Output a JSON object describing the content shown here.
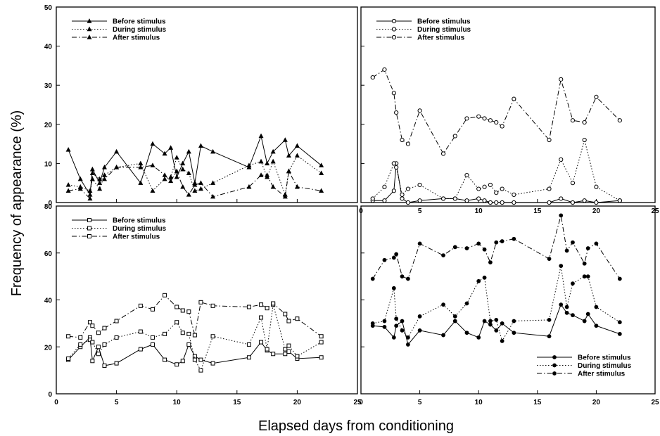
{
  "figure": {
    "ylabel": "Frequency of appearance (%)",
    "xlabel": "Elapsed days from conditioning"
  },
  "chart_data": [
    {
      "type": "line",
      "marker": "filled-triangle",
      "xlim": [
        0,
        25
      ],
      "ylim": [
        0,
        50
      ],
      "xticks": [
        "0",
        "5",
        "10",
        "15",
        "20",
        "25"
      ],
      "yticks": [
        "0",
        "10",
        "20",
        "30",
        "40",
        "50"
      ],
      "legend_position": "top-left",
      "series": [
        {
          "name": "Before stimulus",
          "style": "solid",
          "x": [
            1,
            2,
            2.8,
            3,
            3.6,
            4,
            5,
            7,
            8,
            9,
            9.5,
            10,
            10.5,
            11,
            11.5,
            12,
            13,
            16,
            17,
            17.5,
            18,
            19,
            19.3,
            20,
            22
          ],
          "y": [
            13.5,
            6,
            2,
            8.5,
            5,
            9,
            13,
            5,
            15,
            12.5,
            14,
            6.5,
            10,
            13,
            5,
            14.5,
            13,
            9,
            17,
            10,
            13,
            16,
            12,
            14.5,
            9.5
          ]
        },
        {
          "name": "During stimulus",
          "style": "dotted",
          "x": [
            1,
            2,
            2.8,
            3,
            3.6,
            4,
            5,
            7,
            8,
            9,
            9.5,
            10,
            10.5,
            11,
            11.5,
            12,
            13,
            16,
            17,
            17.5,
            18,
            19,
            19.3,
            20,
            22
          ],
          "y": [
            4.5,
            4,
            3,
            6,
            3.5,
            7,
            9,
            10,
            3,
            6,
            6.5,
            11.5,
            8.5,
            7.5,
            3,
            3.5,
            5,
            9.5,
            10.5,
            6.5,
            10.5,
            2,
            8,
            12,
            7.5
          ]
        },
        {
          "name": "After stimulus",
          "style": "dashdot",
          "x": [
            1,
            2,
            2.8,
            3,
            3.6,
            4,
            5,
            7,
            8,
            9,
            9.5,
            10,
            10.5,
            11,
            11.5,
            12,
            13,
            16,
            17,
            17.5,
            18,
            19,
            19.3,
            20,
            22
          ],
          "y": [
            3,
            3.5,
            1,
            7.5,
            6,
            6,
            9,
            9,
            9.5,
            7,
            5.5,
            8,
            4,
            2,
            4.5,
            5,
            1.5,
            4,
            7,
            7,
            4,
            1.5,
            8,
            4,
            3
          ]
        }
      ]
    },
    {
      "type": "line",
      "marker": "open-circle",
      "xlim": [
        0,
        25
      ],
      "ylim": [
        0,
        50
      ],
      "xticks": [
        "0",
        "5",
        "10",
        "15",
        "20",
        "25"
      ],
      "yticks": [
        "0",
        "10",
        "20",
        "30",
        "40",
        "50"
      ],
      "legend_position": "top-left",
      "series": [
        {
          "name": "Before stimulus",
          "style": "solid",
          "x": [
            1,
            2,
            2.8,
            3,
            3.5,
            4,
            5,
            7,
            8,
            9,
            10,
            10.5,
            11,
            11.5,
            12,
            13,
            16,
            17,
            18,
            19,
            20,
            22
          ],
          "y": [
            0.5,
            0.5,
            3,
            10,
            1,
            0,
            0.5,
            1,
            1,
            0.5,
            1,
            0.5,
            0,
            0,
            0,
            0,
            0,
            1,
            0,
            0.5,
            0,
            0.5
          ]
        },
        {
          "name": "During stimulus",
          "style": "dotted",
          "x": [
            1,
            2,
            2.8,
            3,
            3.5,
            4,
            5,
            7,
            8,
            9,
            10,
            10.5,
            11,
            11.5,
            12,
            13,
            16,
            17,
            18,
            19,
            20,
            22
          ],
          "y": [
            1,
            4,
            10,
            9,
            2,
            3.5,
            4.5,
            1,
            1,
            7,
            3.5,
            4,
            4.5,
            2.5,
            3.5,
            2,
            3.5,
            11,
            5,
            16,
            4,
            0.5
          ]
        },
        {
          "name": "After stimulus",
          "style": "dashdot",
          "x": [
            1,
            2,
            2.8,
            3,
            3.5,
            4,
            5,
            7,
            8,
            9,
            10,
            10.5,
            11,
            11.5,
            12,
            13,
            16,
            17,
            18,
            19,
            20,
            22
          ],
          "y": [
            32,
            34,
            28,
            23,
            16,
            15,
            23.5,
            12.5,
            17,
            21.5,
            22,
            21.5,
            21,
            20.5,
            19.5,
            26.5,
            16,
            31.5,
            21,
            20.5,
            27,
            21
          ]
        }
      ]
    },
    {
      "type": "line",
      "marker": "open-square",
      "xlim": [
        0,
        25
      ],
      "ylim": [
        0,
        80
      ],
      "xticks": [
        "0",
        "5",
        "10",
        "15",
        "20",
        "25"
      ],
      "yticks": [
        "0",
        "20",
        "40",
        "60",
        "80"
      ],
      "legend_position": "top-left",
      "series": [
        {
          "name": "Before stimulus",
          "style": "solid",
          "x": [
            1,
            2,
            2.8,
            3,
            3.5,
            4,
            5,
            7,
            8,
            9,
            10,
            10.5,
            11,
            11.5,
            12,
            13,
            16,
            17,
            17.5,
            18,
            19,
            19.3,
            20,
            22
          ],
          "y": [
            14.5,
            20,
            24,
            14,
            20,
            12,
            13,
            19,
            21,
            14.5,
            12.5,
            14,
            21,
            16,
            14.5,
            13,
            15.5,
            22,
            18.5,
            17,
            17,
            18,
            15,
            15.5
          ]
        },
        {
          "name": "During stimulus",
          "style": "dotted",
          "x": [
            1,
            2,
            2.8,
            3,
            3.5,
            4,
            5,
            7,
            8,
            9,
            10,
            10.5,
            11,
            11.5,
            12,
            13,
            16,
            17,
            17.5,
            18,
            19,
            19.3,
            20,
            22
          ],
          "y": [
            15,
            21,
            23,
            22,
            17,
            21,
            24,
            26.5,
            24,
            25.5,
            30.5,
            26,
            25.5,
            14.5,
            10,
            24.5,
            21,
            32.5,
            19,
            38,
            19,
            20.5,
            16,
            22
          ]
        },
        {
          "name": "After stimulus",
          "style": "dashdot",
          "x": [
            1,
            2,
            2.8,
            3,
            3.5,
            4,
            5,
            7,
            8,
            9,
            10,
            10.5,
            11,
            11.5,
            12,
            13,
            16,
            17,
            17.5,
            18,
            19,
            19.3,
            20,
            22
          ],
          "y": [
            24.5,
            24,
            30.5,
            29,
            26,
            28,
            31,
            37.5,
            36,
            42,
            37,
            35.5,
            35,
            25,
            39,
            37.5,
            37,
            38,
            36.5,
            38.5,
            34,
            31,
            32,
            24.5
          ]
        }
      ]
    },
    {
      "type": "line",
      "marker": "filled-circle",
      "xlim": [
        0,
        25
      ],
      "ylim": [
        0,
        80
      ],
      "xticks": [
        "0",
        "5",
        "10",
        "15",
        "20",
        "25"
      ],
      "yticks": [
        "0",
        "20",
        "40",
        "60",
        "80"
      ],
      "legend_position": "bottom-right",
      "series": [
        {
          "name": "Before stimulus",
          "style": "solid",
          "x": [
            1,
            2,
            2.8,
            3,
            3.5,
            4,
            5,
            7,
            8,
            9,
            10,
            10.5,
            11,
            11.5,
            12,
            13,
            16,
            17,
            17.5,
            18,
            19,
            19.3,
            20,
            22
          ],
          "y": [
            29,
            28.5,
            24,
            29,
            31,
            21,
            27,
            25,
            31,
            26,
            24,
            31,
            29.5,
            27,
            30,
            26,
            24.5,
            38,
            34.5,
            33.5,
            31,
            34,
            29,
            25.5
          ]
        },
        {
          "name": "During stimulus",
          "style": "dotted",
          "x": [
            1,
            2,
            2.8,
            3,
            3.5,
            4,
            5,
            7,
            8,
            9,
            10,
            10.5,
            11,
            11.5,
            12,
            13,
            16,
            17,
            17.5,
            18,
            19,
            19.3,
            20,
            22
          ],
          "y": [
            30,
            31,
            45,
            32,
            27,
            24,
            33,
            38,
            33,
            38.5,
            48,
            49.5,
            31,
            31.5,
            22.5,
            31,
            31.5,
            54.5,
            37,
            47,
            50,
            50,
            37,
            30.5
          ]
        },
        {
          "name": "After stimulus",
          "style": "dashdot",
          "x": [
            1,
            2,
            2.8,
            3,
            3.5,
            4,
            5,
            7,
            8,
            9,
            10,
            10.5,
            11,
            11.5,
            12,
            13,
            16,
            17,
            17.5,
            18,
            19,
            19.3,
            20,
            22
          ],
          "y": [
            49,
            57,
            58,
            59.5,
            50,
            49,
            64,
            59,
            62.5,
            62,
            64,
            61.5,
            56,
            64.5,
            65,
            66,
            57.5,
            76,
            61,
            64.5,
            55.5,
            62,
            64,
            49
          ]
        }
      ]
    }
  ]
}
